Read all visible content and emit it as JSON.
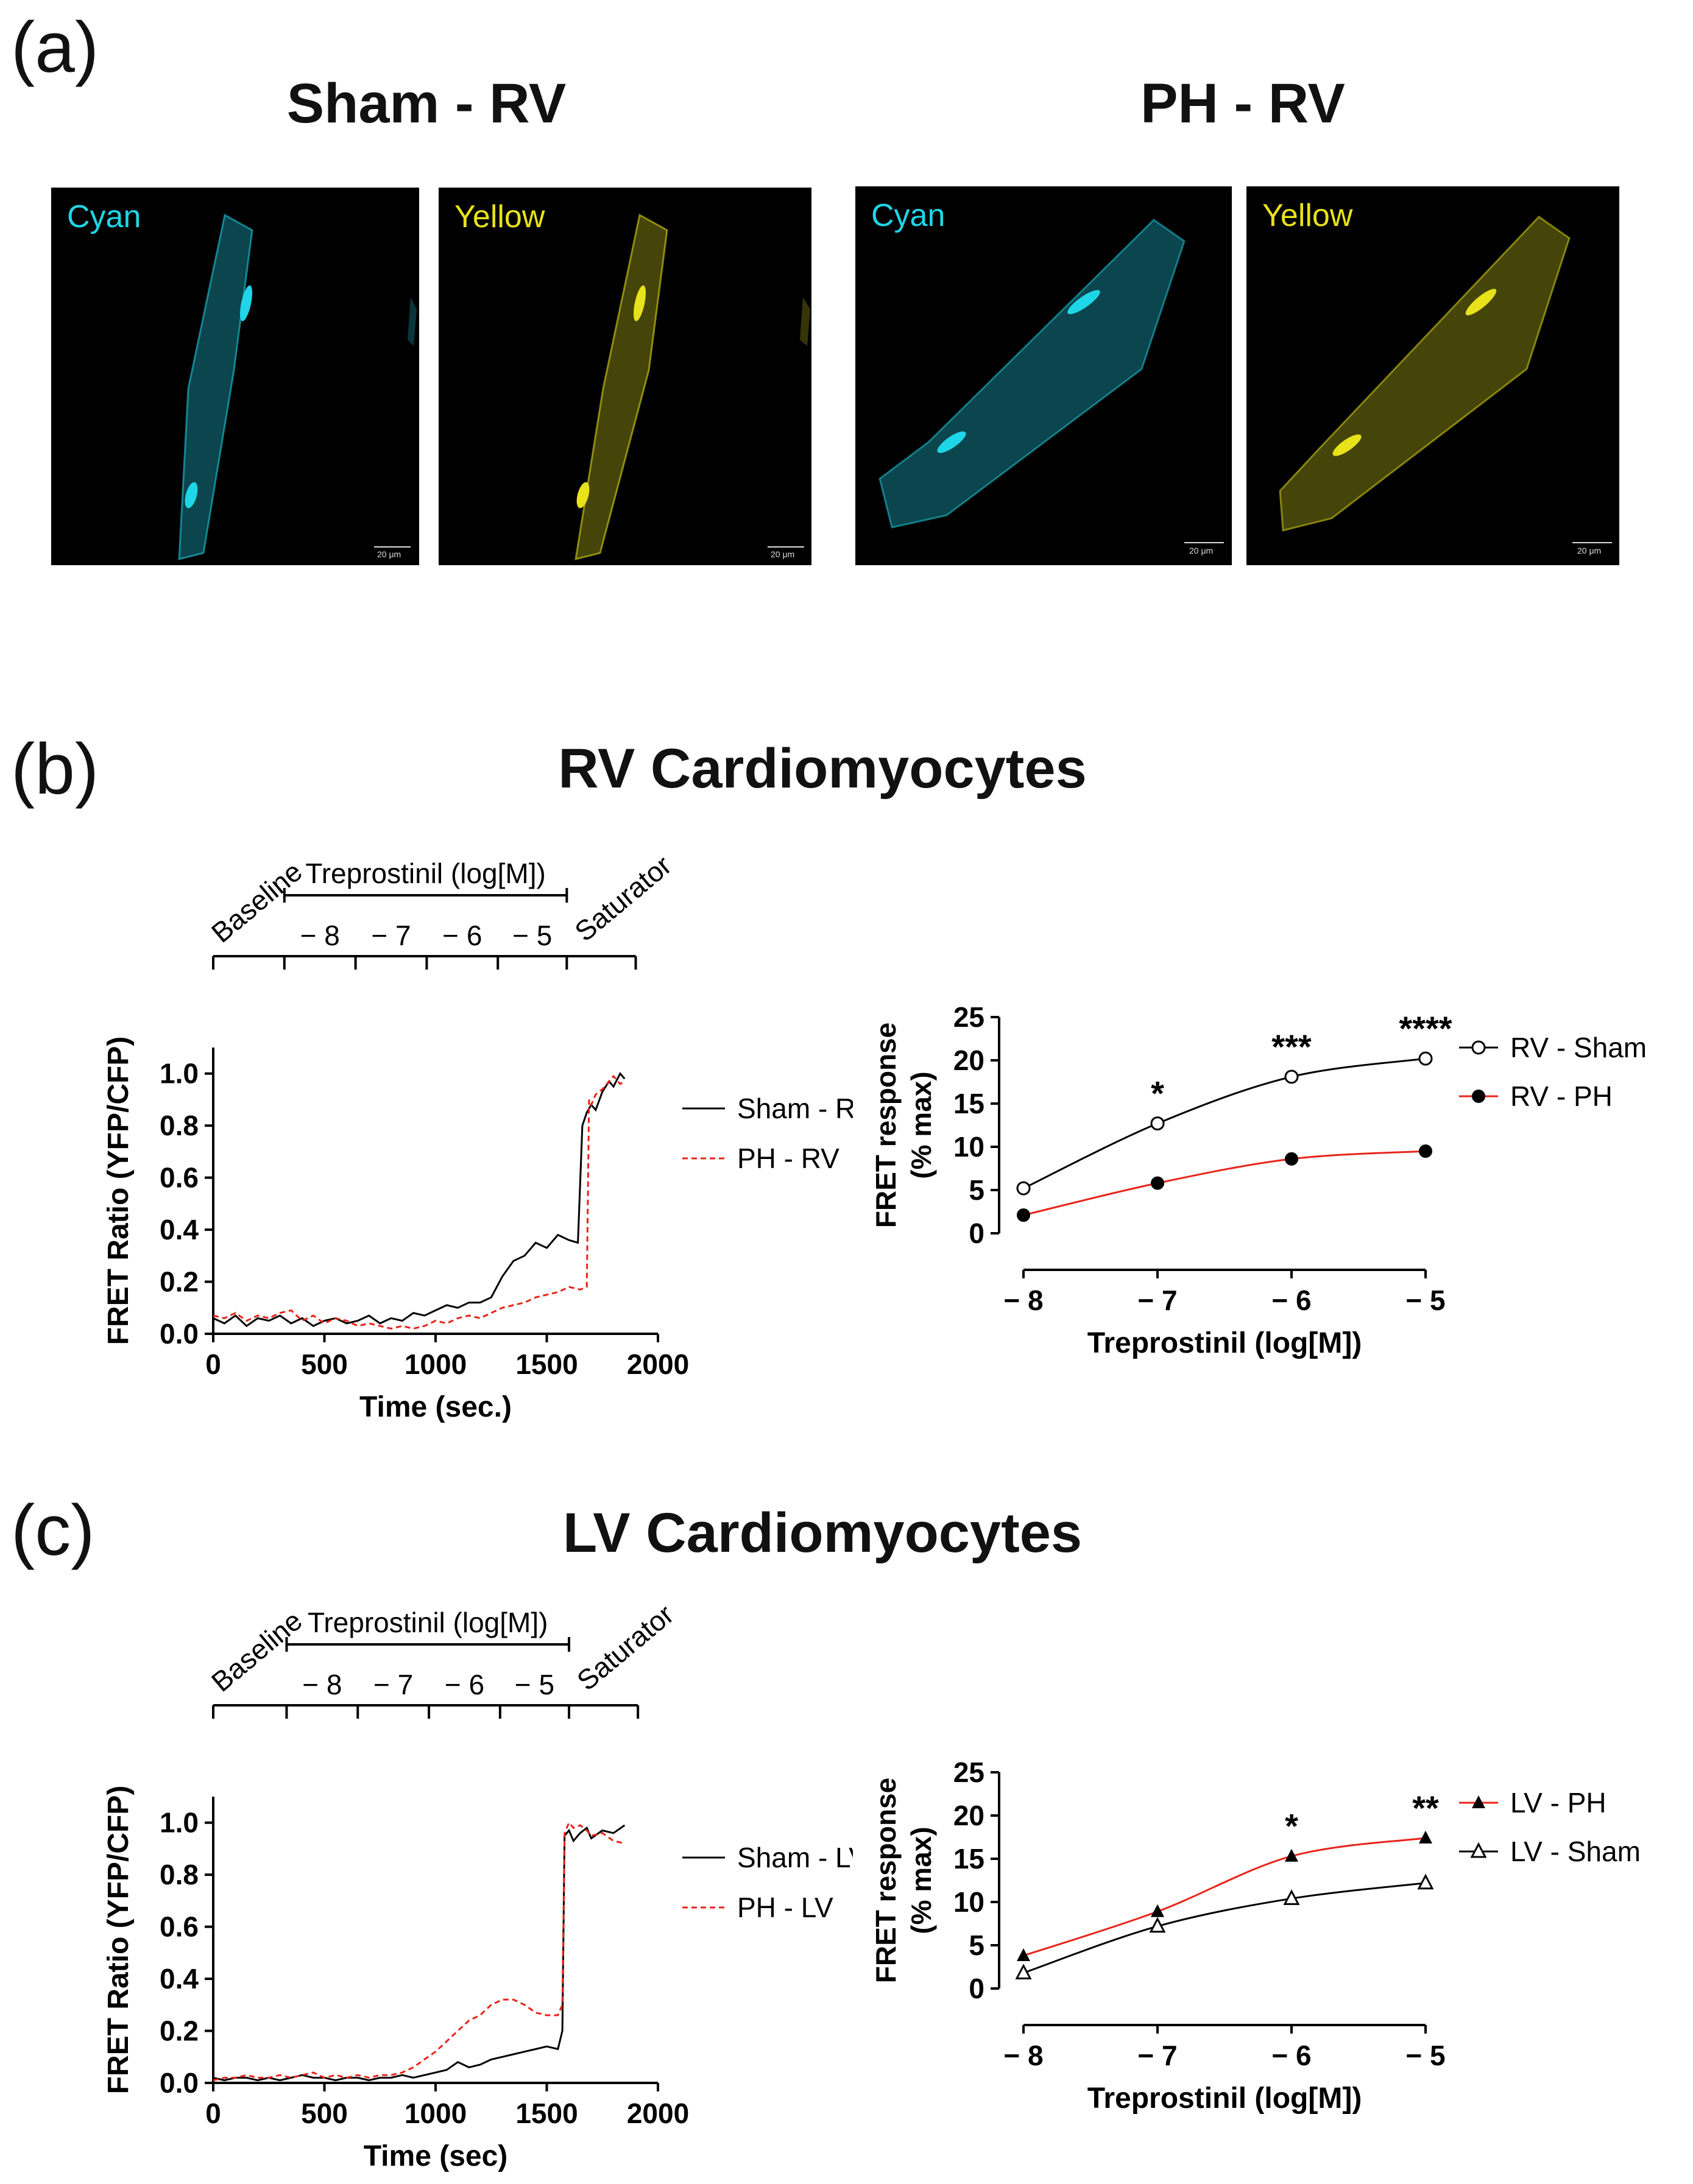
{
  "panels": [
    {
      "label": "(a)"
    },
    {
      "label": "(b)",
      "title": "RV Cardiomyocytes"
    },
    {
      "label": "(c)",
      "title": "LV Cardiomyocytes"
    }
  ],
  "panel_a": {
    "groups": [
      {
        "title": "Sham - RV",
        "images": [
          {
            "channel": "Cyan",
            "scale": "20 μm",
            "color": "#1fd6e8"
          },
          {
            "channel": "Yellow",
            "scale": "20 μm",
            "color": "#e8e21a"
          }
        ]
      },
      {
        "title": "PH - RV",
        "images": [
          {
            "channel": "Cyan",
            "scale": "20 μm",
            "color": "#1fd6e8"
          },
          {
            "channel": "Yellow",
            "scale": "20 μm",
            "color": "#e8e21a"
          }
        ]
      }
    ]
  },
  "chart_data": [
    {
      "id": "b-trace",
      "type": "line",
      "xlabel": "Time (sec.)",
      "ylabel": "FRET Ratio (YFP/CFP)",
      "xlim": [
        0,
        2000
      ],
      "ylim": [
        0,
        1.1
      ],
      "xticks": [
        0,
        500,
        1000,
        1500,
        2000
      ],
      "yticks": [
        0.0,
        0.2,
        0.4,
        0.6,
        0.8,
        1.0
      ],
      "ytick_labels": [
        "0.0",
        "0.2",
        "0.4",
        "0.6",
        "0.8",
        "1.0"
      ],
      "protocol": {
        "baseline": "Baseline",
        "drug": "Treprostinil (log[M])",
        "saturator": "Saturator",
        "doses": [
          "− 8",
          "− 7",
          "− 6",
          "− 5"
        ],
        "boundaries": [
          0,
          320,
          640,
          960,
          1280,
          1590,
          1900
        ]
      },
      "legend_position": "right",
      "series": [
        {
          "name": "Sham - RV",
          "color": "#000000",
          "dash": "solid",
          "x": [
            0,
            50,
            100,
            150,
            200,
            250,
            300,
            350,
            400,
            450,
            500,
            550,
            600,
            650,
            700,
            750,
            800,
            850,
            900,
            950,
            1000,
            1050,
            1100,
            1150,
            1200,
            1250,
            1300,
            1350,
            1400,
            1450,
            1500,
            1550,
            1600,
            1640,
            1660,
            1680,
            1700,
            1720,
            1750,
            1780,
            1800,
            1830,
            1850
          ],
          "y": [
            0.06,
            0.04,
            0.07,
            0.03,
            0.06,
            0.05,
            0.07,
            0.04,
            0.06,
            0.03,
            0.05,
            0.06,
            0.04,
            0.05,
            0.07,
            0.04,
            0.06,
            0.05,
            0.08,
            0.07,
            0.09,
            0.11,
            0.1,
            0.12,
            0.12,
            0.14,
            0.22,
            0.28,
            0.3,
            0.35,
            0.33,
            0.38,
            0.36,
            0.35,
            0.8,
            0.85,
            0.88,
            0.86,
            0.93,
            0.97,
            0.95,
            1.0,
            0.98
          ]
        },
        {
          "name": "PH - RV",
          "color": "#e8231a",
          "dash": "dashed",
          "x": [
            0,
            50,
            100,
            150,
            200,
            250,
            300,
            350,
            400,
            450,
            500,
            550,
            600,
            650,
            700,
            750,
            800,
            850,
            900,
            950,
            1000,
            1050,
            1100,
            1150,
            1200,
            1250,
            1300,
            1350,
            1400,
            1450,
            1500,
            1550,
            1600,
            1650,
            1680,
            1690,
            1700,
            1720,
            1750,
            1780,
            1800,
            1830,
            1850
          ],
          "y": [
            0.07,
            0.06,
            0.08,
            0.05,
            0.07,
            0.06,
            0.08,
            0.09,
            0.05,
            0.07,
            0.04,
            0.06,
            0.05,
            0.03,
            0.04,
            0.03,
            0.02,
            0.03,
            0.02,
            0.03,
            0.05,
            0.04,
            0.06,
            0.07,
            0.06,
            0.08,
            0.1,
            0.11,
            0.12,
            0.14,
            0.15,
            0.16,
            0.18,
            0.17,
            0.18,
            0.9,
            0.88,
            0.92,
            0.94,
            0.97,
            0.99,
            0.96,
            0.97
          ]
        }
      ]
    },
    {
      "id": "b-dose",
      "type": "line",
      "xlabel": "Treprostinil (log[M])",
      "ylabel": "FRET response (% max)",
      "xlim": [
        -8,
        -5
      ],
      "ylim": [
        0,
        25
      ],
      "xticks": [
        -8,
        -7,
        -6,
        -5
      ],
      "xtick_labels": [
        "− 8",
        "− 7",
        "− 6",
        "− 5"
      ],
      "yticks": [
        0,
        5,
        10,
        15,
        20,
        25
      ],
      "legend_position": "right",
      "annotations": [
        {
          "x": -7,
          "text": "*"
        },
        {
          "x": -6,
          "text": "***"
        },
        {
          "x": -5,
          "text": "****"
        }
      ],
      "series": [
        {
          "name": "RV - Sham",
          "color": "#000000",
          "marker": "circle-open",
          "x": [
            -8,
            -7,
            -6,
            -5
          ],
          "y": [
            5.2,
            12.7,
            18.1,
            20.2
          ]
        },
        {
          "name": "RV - PH",
          "color": "#e8231a",
          "marker": "circle-filled",
          "x": [
            -8,
            -7,
            -6,
            -5
          ],
          "y": [
            2.1,
            5.8,
            8.6,
            9.5
          ]
        }
      ]
    },
    {
      "id": "c-trace",
      "type": "line",
      "xlabel": "Time (sec)",
      "ylabel": "FRET Ratio (YFP/CFP)",
      "xlim": [
        0,
        2000
      ],
      "ylim": [
        0,
        1.1
      ],
      "xticks": [
        0,
        500,
        1000,
        1500,
        2000
      ],
      "yticks": [
        0.0,
        0.2,
        0.4,
        0.6,
        0.8,
        1.0
      ],
      "ytick_labels": [
        "0.0",
        "0.2",
        "0.4",
        "0.6",
        "0.8",
        "1.0"
      ],
      "protocol": {
        "baseline": "Baseline",
        "drug": "Treprostinil (log[M])",
        "saturator": "Saturator",
        "doses": [
          "− 8",
          "− 7",
          "− 6",
          "− 5"
        ],
        "boundaries": [
          0,
          330,
          650,
          970,
          1290,
          1600,
          1910
        ]
      },
      "legend_position": "right",
      "series": [
        {
          "name": "Sham - LV",
          "color": "#000000",
          "dash": "solid",
          "x": [
            0,
            50,
            100,
            150,
            200,
            250,
            300,
            350,
            400,
            450,
            500,
            550,
            600,
            650,
            700,
            750,
            800,
            850,
            900,
            950,
            1000,
            1050,
            1100,
            1150,
            1200,
            1250,
            1300,
            1350,
            1400,
            1450,
            1500,
            1550,
            1570,
            1580,
            1600,
            1620,
            1650,
            1680,
            1700,
            1750,
            1800,
            1850
          ],
          "y": [
            0.02,
            0.01,
            0.02,
            0.02,
            0.01,
            0.02,
            0.01,
            0.02,
            0.03,
            0.02,
            0.02,
            0.01,
            0.02,
            0.02,
            0.01,
            0.02,
            0.02,
            0.03,
            0.02,
            0.03,
            0.04,
            0.05,
            0.08,
            0.06,
            0.07,
            0.09,
            0.1,
            0.11,
            0.12,
            0.13,
            0.14,
            0.13,
            0.2,
            0.95,
            0.97,
            0.93,
            0.96,
            0.98,
            0.94,
            0.97,
            0.96,
            0.99
          ]
        },
        {
          "name": "PH - LV",
          "color": "#e8231a",
          "dash": "dashed",
          "x": [
            0,
            50,
            100,
            150,
            200,
            250,
            300,
            350,
            400,
            450,
            500,
            550,
            600,
            650,
            700,
            750,
            800,
            850,
            900,
            950,
            1000,
            1050,
            1100,
            1150,
            1200,
            1250,
            1300,
            1350,
            1400,
            1450,
            1500,
            1550,
            1570,
            1580,
            1600,
            1620,
            1650,
            1680,
            1700,
            1750,
            1800,
            1850
          ],
          "y": [
            0.01,
            0.02,
            0.02,
            0.03,
            0.02,
            0.02,
            0.03,
            0.02,
            0.03,
            0.04,
            0.02,
            0.03,
            0.02,
            0.03,
            0.02,
            0.03,
            0.03,
            0.04,
            0.06,
            0.09,
            0.12,
            0.16,
            0.2,
            0.24,
            0.26,
            0.3,
            0.32,
            0.32,
            0.3,
            0.27,
            0.26,
            0.26,
            0.3,
            0.96,
            1.0,
            0.98,
            0.99,
            0.97,
            0.95,
            0.96,
            0.93,
            0.92
          ]
        }
      ]
    },
    {
      "id": "c-dose",
      "type": "line",
      "xlabel": "Treprostinil (log[M])",
      "ylabel": "FRET response (% max)",
      "xlim": [
        -8,
        -5
      ],
      "ylim": [
        0,
        25
      ],
      "xticks": [
        -8,
        -7,
        -6,
        -5
      ],
      "xtick_labels": [
        "− 8",
        "− 7",
        "− 6",
        "− 5"
      ],
      "yticks": [
        0,
        5,
        10,
        15,
        20,
        25
      ],
      "legend_position": "right",
      "annotations": [
        {
          "x": -6,
          "text": "*"
        },
        {
          "x": -5,
          "text": "**"
        }
      ],
      "series": [
        {
          "name": "LV - PH",
          "color": "#e8231a",
          "marker": "triangle-filled",
          "x": [
            -8,
            -7,
            -6,
            -5
          ],
          "y": [
            3.8,
            8.9,
            15.3,
            17.4
          ]
        },
        {
          "name": "LV - Sham",
          "color": "#000000",
          "marker": "triangle-open",
          "x": [
            -8,
            -7,
            -6,
            -5
          ],
          "y": [
            1.8,
            7.2,
            10.4,
            12.2
          ]
        }
      ]
    }
  ]
}
